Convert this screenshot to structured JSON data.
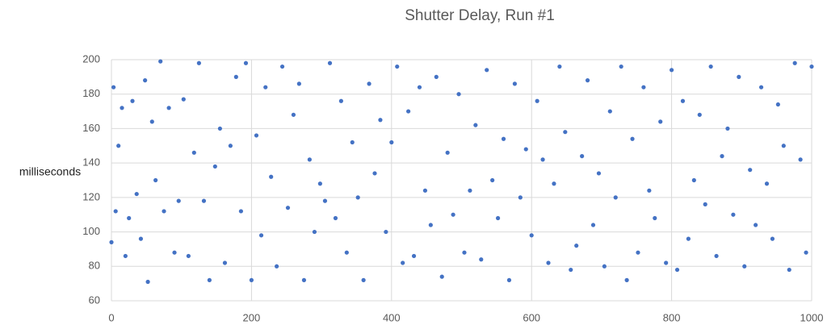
{
  "chart_data": {
    "type": "scatter",
    "title": "Shutter Delay, Run #1",
    "y_label": "milliseconds",
    "color": "#4472c4",
    "grid": true,
    "xlim": [
      0,
      1000
    ],
    "xticks": [
      0,
      200,
      400,
      600,
      800,
      1000
    ],
    "ylim": [
      60,
      200
    ],
    "yticks": [
      60,
      80,
      100,
      120,
      140,
      160,
      180,
      200
    ],
    "series": [
      {
        "name": "Run #1",
        "color": "#4472c4",
        "x": [
          0,
          3,
          6,
          10,
          15,
          20,
          25,
          30,
          36,
          42,
          48,
          52,
          58,
          63,
          70,
          75,
          82,
          90,
          96,
          103,
          110,
          118,
          125,
          132,
          140,
          148,
          155,
          162,
          170,
          178,
          185,
          192,
          200,
          207,
          214,
          220,
          228,
          236,
          244,
          252,
          260,
          268,
          275,
          283,
          290,
          298,
          305,
          312,
          320,
          328,
          336,
          344,
          352,
          360,
          368,
          376,
          384,
          392,
          400,
          408,
          416,
          424,
          432,
          440,
          448,
          456,
          464,
          472,
          480,
          488,
          496,
          504,
          512,
          520,
          528,
          536,
          544,
          552,
          560,
          568,
          576,
          584,
          592,
          600,
          608,
          616,
          624,
          632,
          640,
          648,
          656,
          664,
          672,
          680,
          688,
          696,
          704,
          712,
          720,
          728,
          736,
          744,
          752,
          760,
          768,
          776,
          784,
          792,
          800,
          808,
          816,
          824,
          832,
          840,
          848,
          856,
          864,
          872,
          880,
          888,
          896,
          904,
          912,
          920,
          928,
          936,
          944,
          952,
          960,
          968,
          976,
          984,
          992,
          1000
        ],
        "values": [
          94,
          184,
          112,
          150,
          172,
          86,
          108,
          176,
          122,
          96,
          188,
          71,
          164,
          130,
          199,
          112,
          172,
          88,
          118,
          177,
          86,
          146,
          198,
          118,
          72,
          138,
          160,
          82,
          150,
          190,
          112,
          198,
          72,
          156,
          98,
          184,
          132,
          80,
          196,
          114,
          168,
          186,
          72,
          142,
          100,
          128,
          118,
          198,
          108,
          176,
          88,
          152,
          120,
          72,
          186,
          134,
          165,
          100,
          152,
          196,
          82,
          170,
          86,
          184,
          124,
          104,
          190,
          74,
          146,
          110,
          180,
          88,
          124,
          162,
          84,
          194,
          130,
          108,
          154,
          72,
          186,
          120,
          148,
          98,
          176,
          142,
          82,
          128,
          196,
          158,
          78,
          92,
          144,
          188,
          104,
          134,
          80,
          170,
          120,
          196,
          72,
          154,
          88,
          184,
          124,
          108,
          164,
          82,
          194,
          78,
          176,
          96,
          130,
          168,
          116,
          196,
          86,
          144,
          160,
          110,
          190,
          80,
          136,
          104,
          184,
          128,
          96,
          174,
          150,
          78,
          198,
          142,
          88,
          196
        ]
      }
    ]
  }
}
